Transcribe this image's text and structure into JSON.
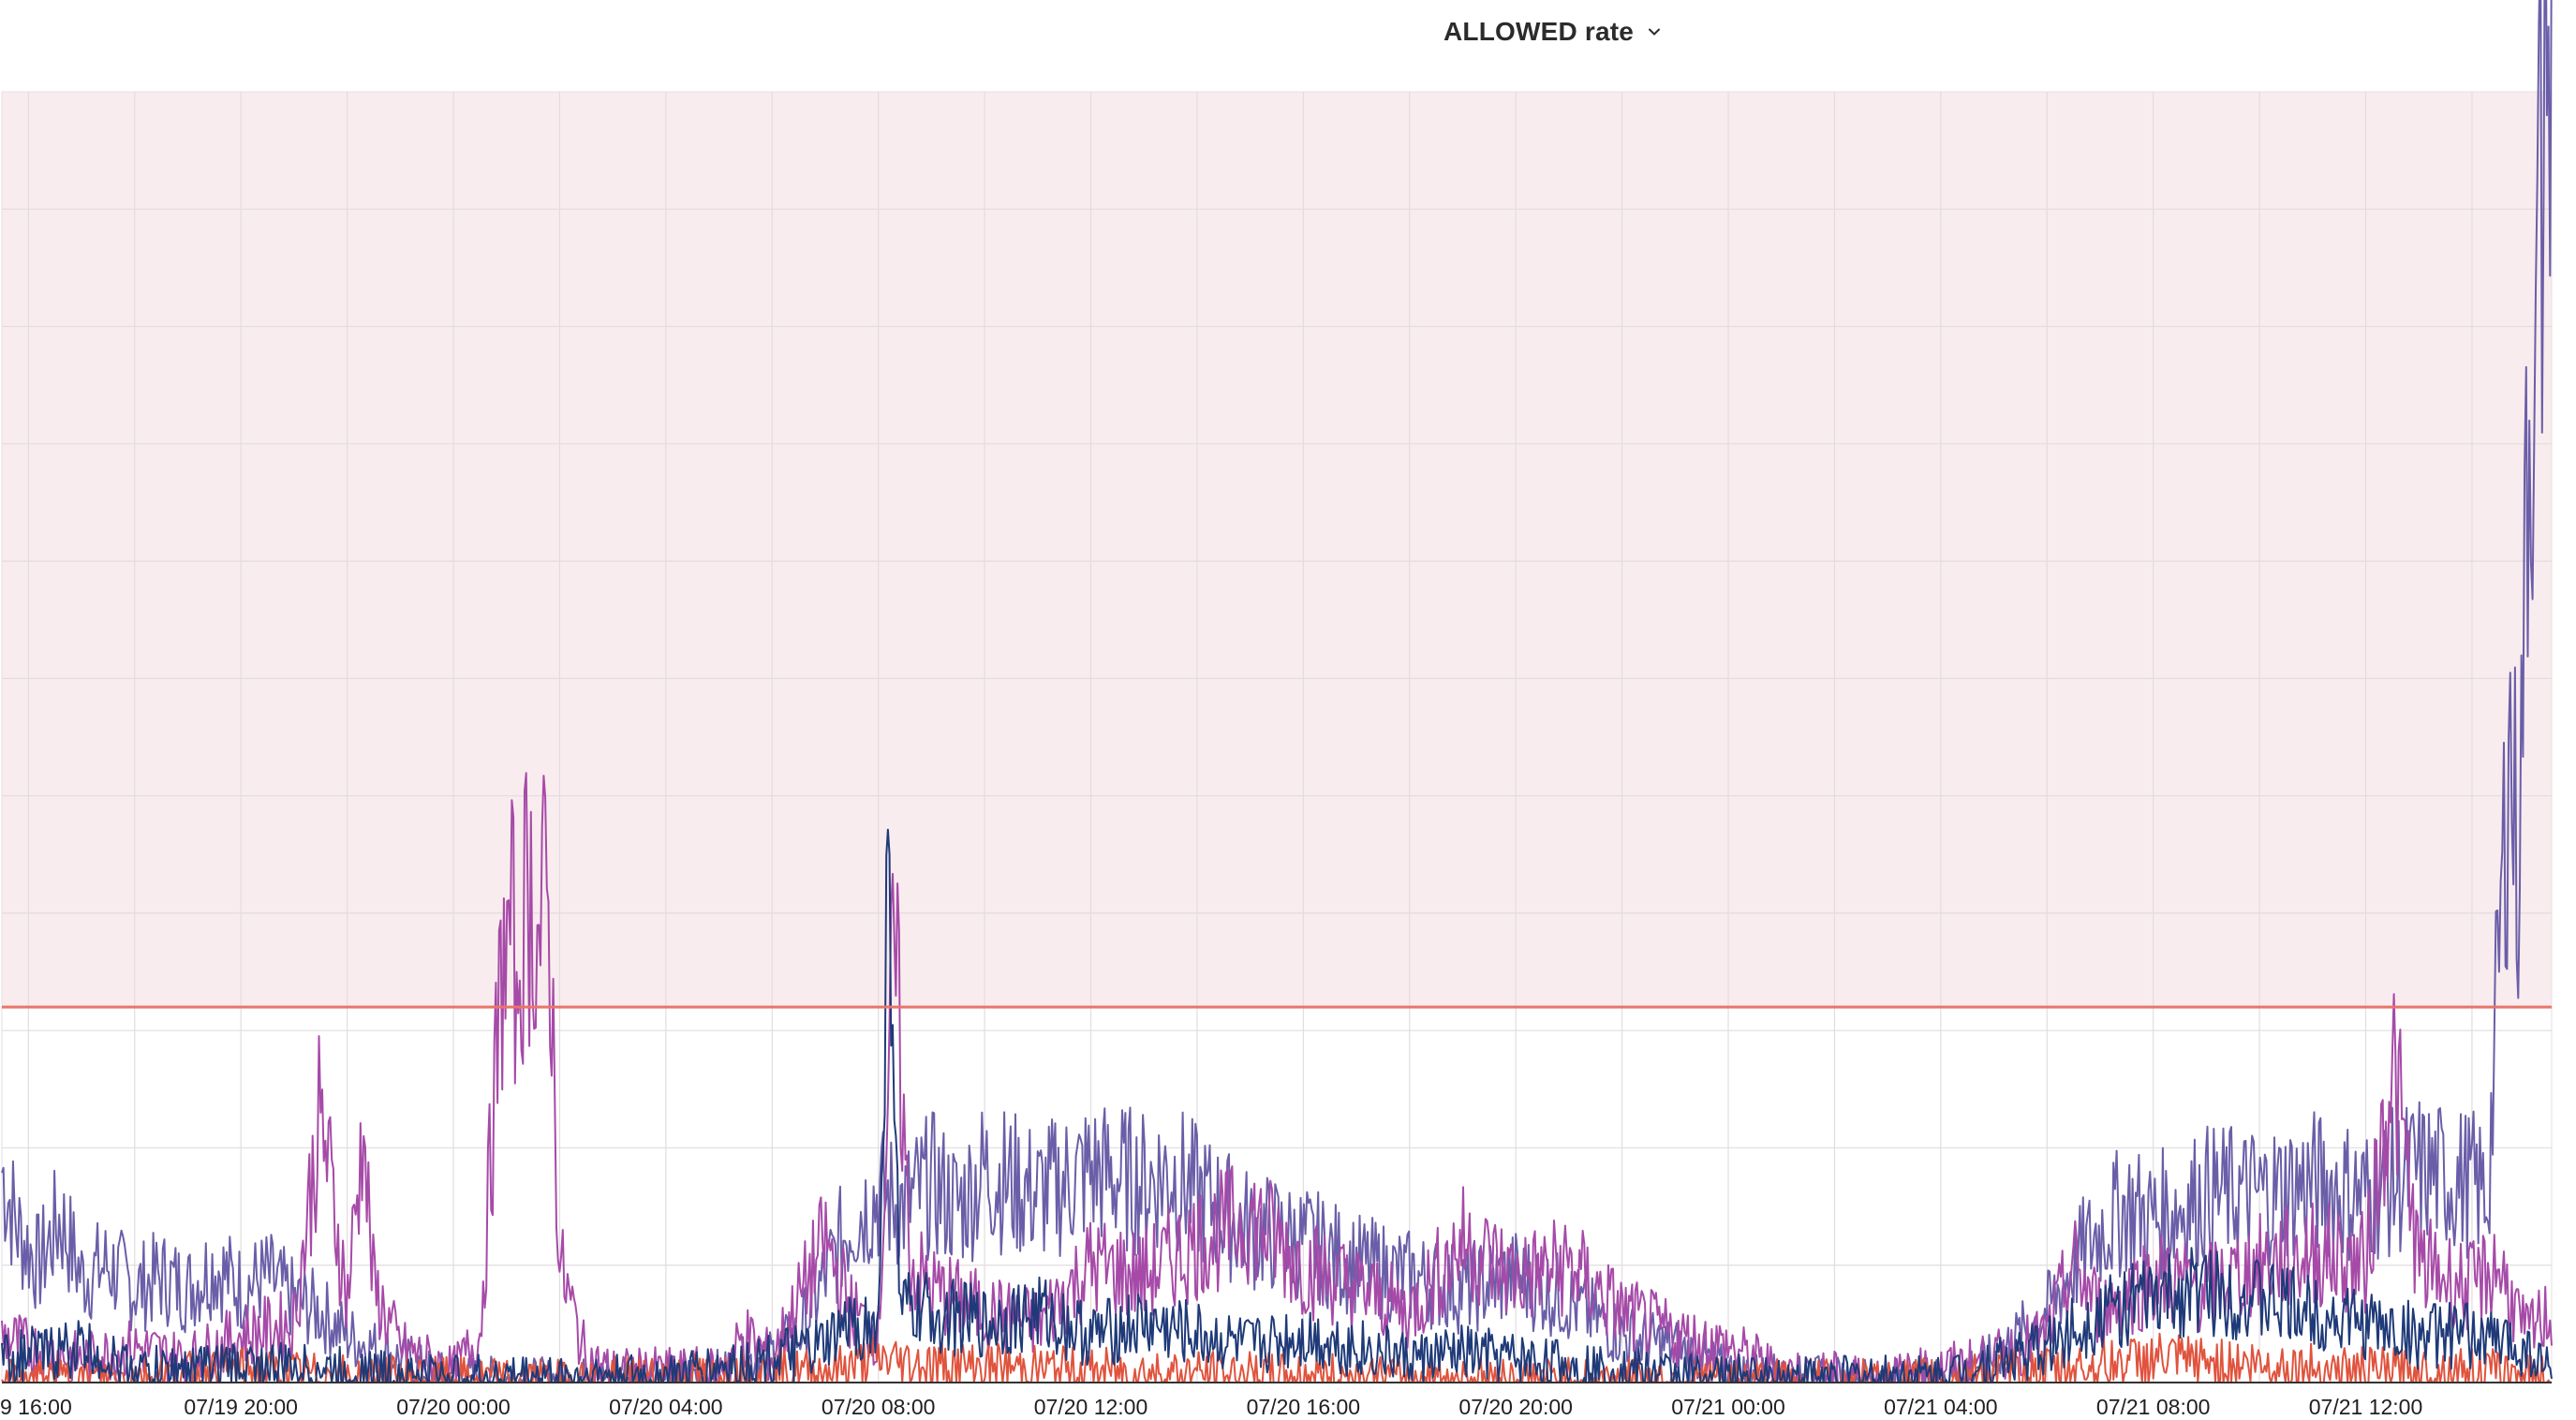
{
  "header": {
    "title": "ALLOWED rate",
    "dropdown_icon": "chevron-down-icon"
  },
  "chart_data": {
    "type": "line",
    "title": "ALLOWED rate",
    "xlabel": "",
    "ylabel": "",
    "x_ticks": [
      "9 16:00",
      "07/19 20:00",
      "07/20 00:00",
      "07/20 04:00",
      "07/20 08:00",
      "07/20 12:00",
      "07/20 16:00",
      "07/20 20:00",
      "07/21 00:00",
      "07/21 04:00",
      "07/21 08:00",
      "07/21 12:00"
    ],
    "x_range_hours": [
      -0.5,
      47.5
    ],
    "y_range": [
      0,
      11
    ],
    "grid": true,
    "threshold": {
      "value": 3.2,
      "color": "#e8746a",
      "shade_color": "#f9ecee"
    },
    "series": [
      {
        "color": "#6b5ea8",
        "points": [
          [
            -0.5,
            1.8
          ],
          [
            -0.2,
            1.3
          ],
          [
            0.2,
            1.0
          ],
          [
            0.6,
            1.4
          ],
          [
            1.0,
            0.9
          ],
          [
            1.5,
            1.0
          ],
          [
            2.0,
            0.8
          ],
          [
            2.5,
            0.9
          ],
          [
            3.0,
            0.8
          ],
          [
            3.5,
            1.0
          ],
          [
            4.0,
            0.8
          ],
          [
            4.5,
            0.9
          ],
          [
            5.0,
            0.7
          ],
          [
            5.5,
            0.6
          ],
          [
            6.0,
            0.4
          ],
          [
            6.5,
            0.3
          ],
          [
            7.0,
            0.2
          ],
          [
            7.5,
            0.1
          ],
          [
            8.0,
            0.05
          ],
          [
            10.0,
            0.03
          ],
          [
            12.0,
            0.05
          ],
          [
            13.0,
            0.1
          ],
          [
            14.0,
            0.25
          ],
          [
            14.5,
            0.4
          ],
          [
            15.0,
            0.9
          ],
          [
            15.5,
            1.4
          ],
          [
            16.0,
            1.6
          ],
          [
            16.5,
            1.5
          ],
          [
            17.0,
            1.7
          ],
          [
            17.5,
            1.5
          ],
          [
            18.0,
            1.8
          ],
          [
            19.0,
            1.6
          ],
          [
            20.0,
            1.8
          ],
          [
            21.0,
            1.7
          ],
          [
            21.5,
            1.8
          ],
          [
            22.0,
            1.6
          ],
          [
            23.0,
            1.3
          ],
          [
            24.0,
            1.2
          ],
          [
            25.0,
            1.0
          ],
          [
            26.0,
            0.9
          ],
          [
            27.0,
            0.8
          ],
          [
            28.0,
            0.9
          ],
          [
            29.0,
            0.7
          ],
          [
            30.0,
            0.4
          ],
          [
            31.0,
            0.3
          ],
          [
            32.0,
            0.1
          ],
          [
            33.0,
            0.05
          ],
          [
            35.0,
            0.03
          ],
          [
            36.0,
            0.05
          ],
          [
            37.0,
            0.2
          ],
          [
            38.0,
            0.6
          ],
          [
            38.5,
            1.0
          ],
          [
            39.0,
            1.3
          ],
          [
            39.5,
            1.5
          ],
          [
            40.0,
            1.4
          ],
          [
            41.0,
            1.6
          ],
          [
            42.0,
            1.6
          ],
          [
            43.0,
            1.7
          ],
          [
            44.0,
            1.6
          ],
          [
            45.0,
            1.8
          ],
          [
            46.0,
            1.7
          ],
          [
            46.3,
            1.6
          ],
          [
            46.5,
            3.5
          ],
          [
            46.7,
            5.5
          ],
          [
            46.9,
            4.2
          ],
          [
            47.0,
            7.8
          ],
          [
            47.2,
            9.3
          ],
          [
            47.4,
            10.8
          ]
        ]
      },
      {
        "color": "#a64aa8",
        "points": [
          [
            -0.5,
            0.4
          ],
          [
            0.0,
            0.3
          ],
          [
            1.0,
            0.2
          ],
          [
            2.0,
            0.3
          ],
          [
            3.0,
            0.2
          ],
          [
            4.0,
            0.4
          ],
          [
            5.0,
            0.5
          ],
          [
            5.5,
            2.3
          ],
          [
            6.0,
            0.7
          ],
          [
            6.3,
            2.1
          ],
          [
            6.5,
            0.8
          ],
          [
            7.0,
            0.3
          ],
          [
            8.0,
            0.1
          ],
          [
            8.5,
            0.4
          ],
          [
            9.0,
            4.1
          ],
          [
            9.2,
            3.5
          ],
          [
            9.4,
            4.2
          ],
          [
            9.6,
            3.9
          ],
          [
            9.8,
            4.1
          ],
          [
            10.0,
            1.0
          ],
          [
            10.5,
            0.2
          ],
          [
            11.0,
            0.1
          ],
          [
            13.0,
            0.1
          ],
          [
            13.5,
            0.4
          ],
          [
            14.0,
            0.2
          ],
          [
            15.0,
            1.2
          ],
          [
            15.5,
            0.6
          ],
          [
            16.0,
            0.4
          ],
          [
            16.3,
            3.8
          ],
          [
            16.6,
            1.0
          ],
          [
            17.0,
            0.8
          ],
          [
            18.0,
            0.6
          ],
          [
            19.0,
            0.5
          ],
          [
            20.0,
            1.0
          ],
          [
            21.0,
            0.9
          ],
          [
            22.0,
            1.2
          ],
          [
            23.0,
            1.4
          ],
          [
            24.0,
            1.0
          ],
          [
            25.0,
            0.8
          ],
          [
            26.0,
            0.6
          ],
          [
            27.0,
            1.2
          ],
          [
            28.0,
            0.9
          ],
          [
            29.0,
            1.0
          ],
          [
            30.0,
            0.6
          ],
          [
            31.0,
            0.4
          ],
          [
            32.0,
            0.3
          ],
          [
            33.0,
            0.1
          ],
          [
            35.0,
            0.05
          ],
          [
            37.0,
            0.2
          ],
          [
            38.0,
            0.4
          ],
          [
            38.5,
            1.0
          ],
          [
            39.0,
            0.6
          ],
          [
            40.0,
            0.9
          ],
          [
            41.0,
            0.8
          ],
          [
            42.0,
            1.0
          ],
          [
            43.0,
            1.1
          ],
          [
            44.0,
            1.0
          ],
          [
            44.5,
            2.8
          ],
          [
            45.0,
            1.0
          ],
          [
            46.0,
            0.8
          ],
          [
            46.5,
            1.0
          ],
          [
            47.0,
            0.4
          ],
          [
            47.5,
            0.6
          ]
        ]
      },
      {
        "color": "#1f3a78",
        "points": [
          [
            -0.5,
            0.2
          ],
          [
            1.0,
            0.3
          ],
          [
            2.0,
            0.1
          ],
          [
            4.0,
            0.15
          ],
          [
            6.0,
            0.1
          ],
          [
            8.0,
            0.05
          ],
          [
            12.0,
            0.05
          ],
          [
            14.0,
            0.2
          ],
          [
            15.0,
            0.3
          ],
          [
            15.5,
            0.5
          ],
          [
            16.0,
            0.45
          ],
          [
            16.2,
            4.5
          ],
          [
            16.4,
            0.6
          ],
          [
            17.0,
            0.6
          ],
          [
            18.0,
            0.5
          ],
          [
            19.0,
            0.6
          ],
          [
            20.0,
            0.4
          ],
          [
            21.0,
            0.5
          ],
          [
            22.0,
            0.4
          ],
          [
            23.0,
            0.3
          ],
          [
            24.0,
            0.4
          ],
          [
            25.0,
            0.3
          ],
          [
            26.0,
            0.2
          ],
          [
            27.0,
            0.25
          ],
          [
            28.0,
            0.2
          ],
          [
            30.0,
            0.1
          ],
          [
            32.0,
            0.05
          ],
          [
            36.0,
            0.05
          ],
          [
            38.0,
            0.3
          ],
          [
            39.0,
            0.6
          ],
          [
            40.0,
            0.7
          ],
          [
            41.0,
            0.8
          ],
          [
            42.0,
            0.7
          ],
          [
            43.0,
            0.6
          ],
          [
            44.0,
            0.5
          ],
          [
            45.0,
            0.4
          ],
          [
            46.0,
            0.4
          ],
          [
            47.0,
            0.3
          ],
          [
            47.5,
            0.1
          ]
        ]
      },
      {
        "color": "#e0533d",
        "points": [
          [
            -0.5,
            0.02
          ],
          [
            2.0,
            0.05
          ],
          [
            4.0,
            0.1
          ],
          [
            6.0,
            0.05
          ],
          [
            10.0,
            0.02
          ],
          [
            15.0,
            0.1
          ],
          [
            16.0,
            0.2
          ],
          [
            17.0,
            0.15
          ],
          [
            20.0,
            0.1
          ],
          [
            25.0,
            0.05
          ],
          [
            30.0,
            0.03
          ],
          [
            35.0,
            0.02
          ],
          [
            38.0,
            0.1
          ],
          [
            40.0,
            0.2
          ],
          [
            42.0,
            0.15
          ],
          [
            44.0,
            0.1
          ],
          [
            46.0,
            0.1
          ],
          [
            47.5,
            0.05
          ]
        ]
      }
    ]
  }
}
